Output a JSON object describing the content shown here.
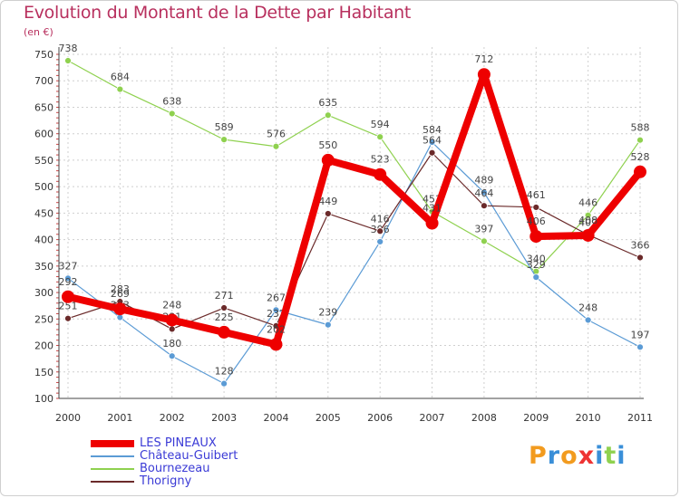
{
  "chart_data": {
    "type": "line",
    "title": "Evolution du Montant de la Dette par Habitant",
    "unit_label": "(en €)",
    "x": [
      "2000",
      "2001",
      "2002",
      "2003",
      "2004",
      "2005",
      "2006",
      "2007",
      "2008",
      "2009",
      "2010",
      "2011"
    ],
    "ylim": [
      100,
      750
    ],
    "yticks": [
      100,
      150,
      200,
      250,
      300,
      350,
      400,
      450,
      500,
      550,
      600,
      650,
      700,
      750
    ],
    "grid": true,
    "legend_position": "bottom-left",
    "series": [
      {
        "name": "Bournezeau",
        "color": "#8fd14f",
        "values": [
          738,
          684,
          638,
          589,
          576,
          635,
          594,
          453,
          397,
          340,
          446,
          588
        ],
        "labels": [
          "738",
          "684",
          "638",
          "589",
          "576",
          "635",
          "594",
          "453",
          "397",
          "340",
          "446",
          "588"
        ]
      },
      {
        "name": "Château-Guibert",
        "color": "#5b9bd5",
        "values": [
          327,
          253,
          180,
          128,
          267,
          239,
          396,
          584,
          489,
          329,
          248,
          197
        ],
        "labels": [
          "327",
          "253",
          "180",
          "128",
          "267",
          "239",
          "396",
          "584",
          "489",
          "329",
          "248",
          "197"
        ]
      },
      {
        "name": "Thorigny",
        "color": "#6b2a2a",
        "values": [
          251,
          283,
          231,
          271,
          237,
          449,
          416,
          564,
          464,
          461,
          409,
          366
        ],
        "labels": [
          "251",
          "283",
          "231",
          "271",
          "237",
          "449",
          "416",
          "564",
          "464",
          "461",
          "409",
          "366"
        ]
      },
      {
        "name": "LES PINEAUX",
        "color": "#ee0000",
        "values": [
          292,
          269,
          248,
          225,
          202,
          550,
          523,
          431,
          712,
          406,
          408,
          528
        ],
        "labels": [
          "292",
          "269",
          "248",
          "225",
          "202",
          "550",
          "523",
          "431",
          "712",
          "406",
          "408",
          "528"
        ]
      }
    ]
  },
  "legend": {
    "items": [
      {
        "label": "LES PINEAUX",
        "color": "#ee0000"
      },
      {
        "label": "Château-Guibert",
        "color": "#5b9bd5"
      },
      {
        "label": "Bournezeau",
        "color": "#8fd14f"
      },
      {
        "label": "Thorigny",
        "color": "#6b2a2a"
      }
    ]
  },
  "logo": {
    "text": "Proxiti",
    "letters": [
      {
        "ch": "P",
        "color": "#f29b1f"
      },
      {
        "ch": "r",
        "color": "#3a8fd8"
      },
      {
        "ch": "o",
        "color": "#f29b1f"
      },
      {
        "ch": "x",
        "color": "#ee3333"
      },
      {
        "ch": "i",
        "color": "#3a8fd8"
      },
      {
        "ch": "t",
        "color": "#8fd14f"
      },
      {
        "ch": "i",
        "color": "#3a8fd8"
      }
    ]
  }
}
